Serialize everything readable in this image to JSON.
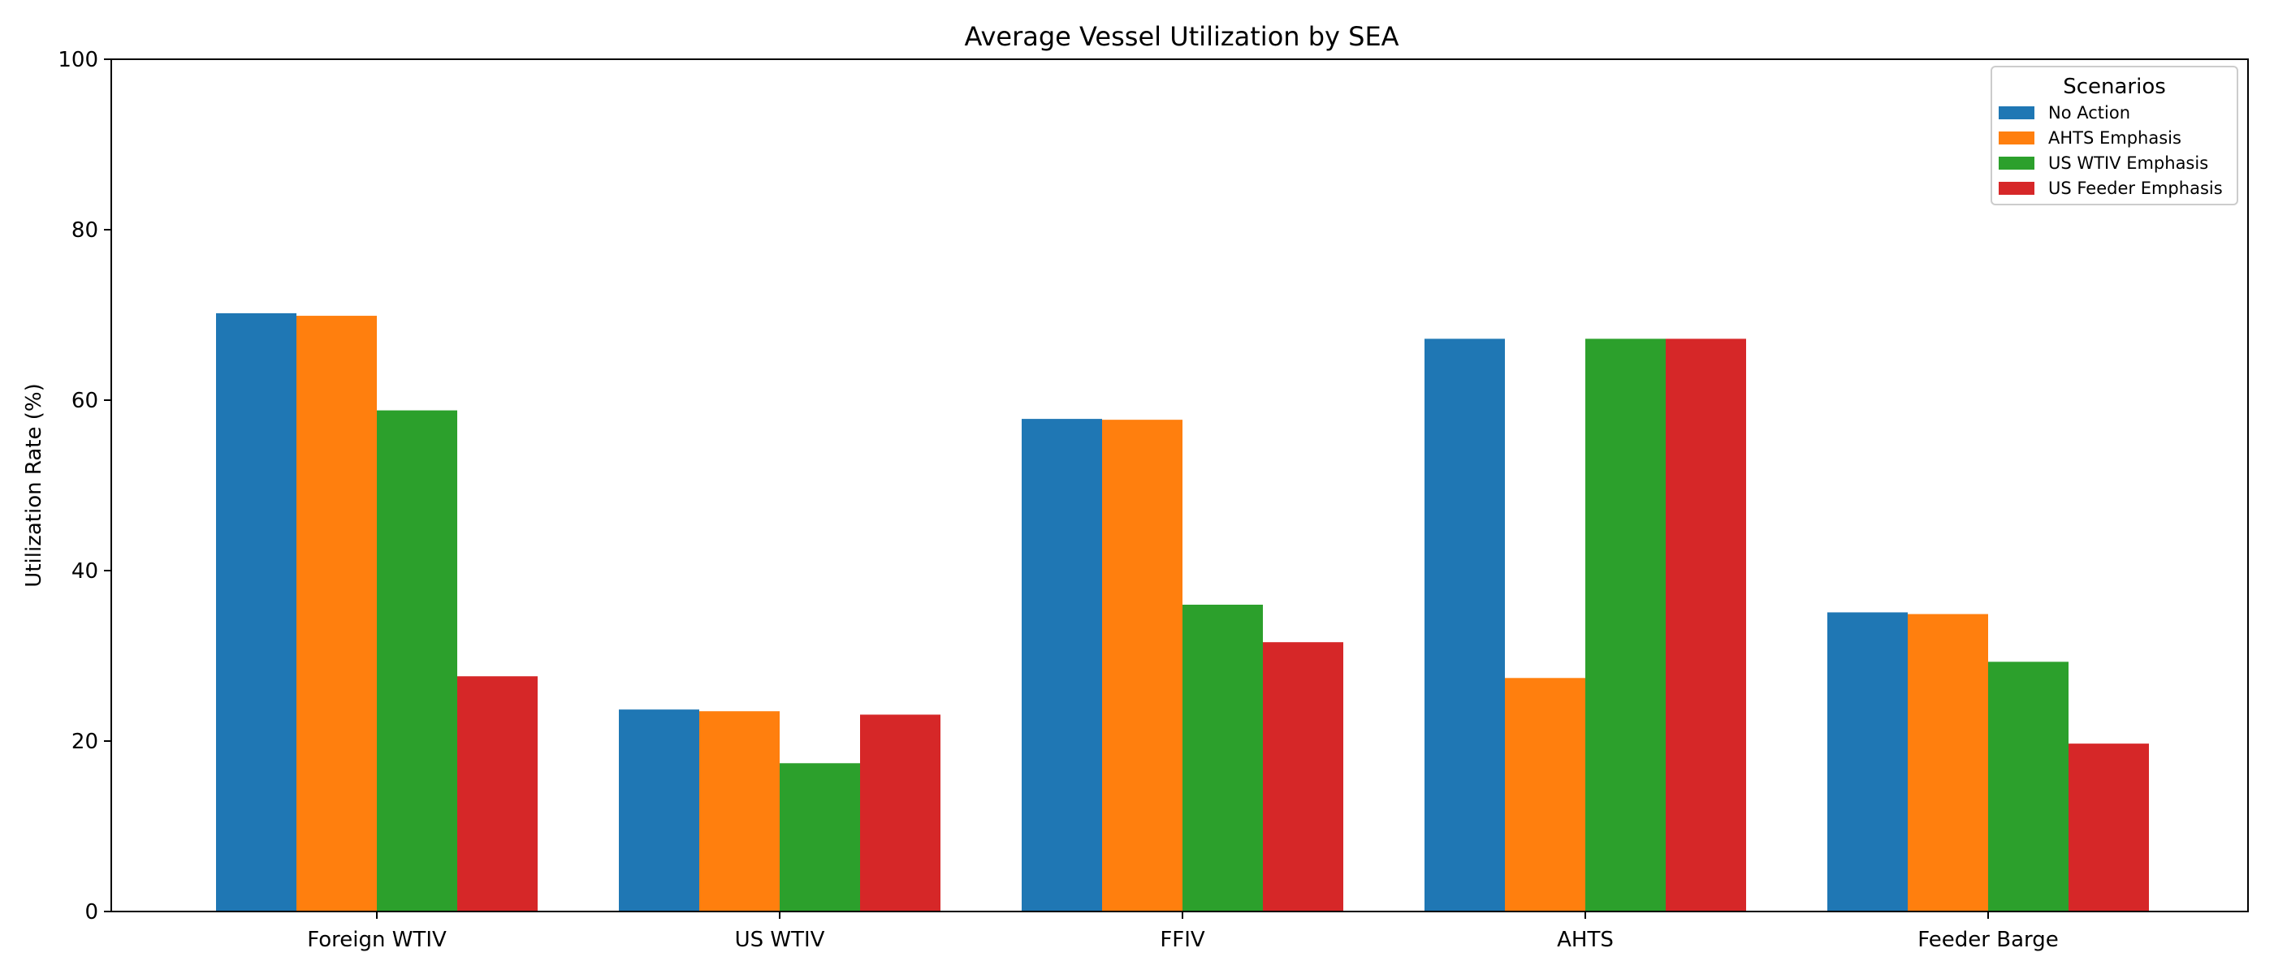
{
  "chart_data": {
    "type": "bar",
    "title": "Average Vessel Utilization by SEA",
    "xlabel": "",
    "ylabel": "Utilization Rate (%)",
    "ylim": [
      0,
      100
    ],
    "yticks": [
      0,
      20,
      40,
      60,
      80,
      100
    ],
    "grid": false,
    "categories": [
      "Foreign WTIV",
      "US WTIV",
      "FFIV",
      "AHTS",
      "Feeder Barge"
    ],
    "legend": {
      "title": "Scenarios",
      "placement": "top-right"
    },
    "series": [
      {
        "name": "No Action",
        "color": "#1f77b4",
        "values": [
          70.2,
          23.7,
          57.8,
          67.2,
          35.1
        ]
      },
      {
        "name": "AHTS Emphasis",
        "color": "#ff7f0e",
        "values": [
          69.9,
          23.5,
          57.7,
          27.4,
          34.9
        ]
      },
      {
        "name": "US WTIV Emphasis",
        "color": "#2ca02c",
        "values": [
          58.8,
          17.4,
          36.0,
          67.2,
          29.3
        ]
      },
      {
        "name": "US Feeder Emphasis",
        "color": "#d62728",
        "values": [
          27.6,
          23.1,
          31.6,
          67.2,
          19.7
        ]
      }
    ]
  }
}
